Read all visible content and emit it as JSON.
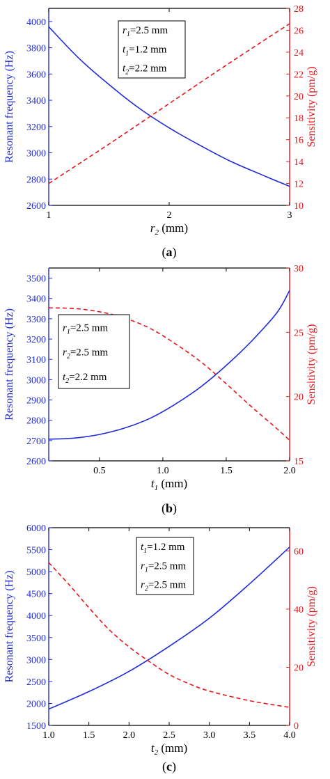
{
  "chart_data": [
    {
      "type": "line",
      "panel_label": "a",
      "xlabel_var": "r",
      "xlabel_sub": "2",
      "xlabel_unit": " (mm)",
      "ylabel_left": "Resonant frequency (Hz)",
      "ylabel_right": "Sensitivity (pm/g)",
      "xlim": [
        1,
        3
      ],
      "ylim_left": [
        2600,
        4100
      ],
      "ylim_right": [
        10,
        28
      ],
      "x_ticks": [
        1,
        2,
        3
      ],
      "x_tick_labels": [
        "1",
        "2",
        "3"
      ],
      "y_left_ticks": [
        2600,
        2800,
        3000,
        3200,
        3400,
        3600,
        3800,
        4000
      ],
      "y_left_tick_labels": [
        "2600",
        "2800",
        "3000",
        "3200",
        "3400",
        "3600",
        "3800",
        "4000"
      ],
      "y_right_ticks": [
        10,
        12,
        14,
        16,
        18,
        20,
        22,
        24,
        26,
        28
      ],
      "y_right_tick_labels": [
        "10",
        "12",
        "14",
        "16",
        "18",
        "20",
        "22",
        "24",
        "26",
        "28"
      ],
      "legend_position": "top-center",
      "legend": [
        {
          "var": "r",
          "sub": "1",
          "text": "=2.5 mm"
        },
        {
          "var": "t",
          "sub": "1",
          "text": "=1.2 mm"
        },
        {
          "var": "t",
          "sub": "2",
          "text": "=2.2 mm"
        }
      ],
      "series": [
        {
          "axis": "left",
          "style": "solid",
          "color": "#1f2bd6",
          "x": [
            1.0,
            1.25,
            1.5,
            1.75,
            2.0,
            2.25,
            2.5,
            2.75,
            3.0
          ],
          "values": [
            3960,
            3720,
            3520,
            3340,
            3190,
            3060,
            2940,
            2840,
            2745
          ]
        },
        {
          "axis": "right",
          "style": "dashed",
          "color": "#e8151b",
          "x": [
            1.0,
            1.5,
            2.0,
            2.5,
            3.0
          ],
          "values": [
            12.0,
            15.6,
            19.3,
            23.0,
            26.6
          ]
        }
      ]
    },
    {
      "type": "line",
      "panel_label": "b",
      "xlabel_var": "t",
      "xlabel_sub": "1",
      "xlabel_unit": " (mm)",
      "ylabel_left": "Resonant frequency (Hz)",
      "ylabel_right": "Sensitivity  (pm/g)",
      "xlim": [
        0.1,
        2.0
      ],
      "ylim_left": [
        2600,
        3550
      ],
      "ylim_right": [
        15,
        30
      ],
      "x_ticks": [
        0.5,
        1.0,
        1.5,
        2.0
      ],
      "x_tick_labels": [
        "0.5",
        "1.0",
        "1.5",
        "2.0"
      ],
      "y_left_ticks": [
        2600,
        2700,
        2800,
        2900,
        3000,
        3100,
        3200,
        3300,
        3400,
        3500
      ],
      "y_left_tick_labels": [
        "2600",
        "2700",
        "2800",
        "2900",
        "3000",
        "3100",
        "3200",
        "3300",
        "3400",
        "3500"
      ],
      "y_right_ticks": [
        15,
        20,
        25,
        30
      ],
      "y_right_tick_labels": [
        "15",
        "20",
        "25",
        "30"
      ],
      "legend_position": "center-left",
      "legend": [
        {
          "var": "r",
          "sub": "1",
          "text": "=2.5 mm"
        },
        {
          "var": "r",
          "sub": "2",
          "text": "=2.5 mm"
        },
        {
          "var": "t",
          "sub": "2",
          "text": "=2.2 mm"
        }
      ],
      "series": [
        {
          "axis": "left",
          "style": "solid",
          "color": "#1f2bd6",
          "x": [
            0.1,
            0.3,
            0.5,
            0.7,
            0.9,
            1.1,
            1.3,
            1.5,
            1.7,
            1.9,
            2.0
          ],
          "values": [
            2707,
            2712,
            2730,
            2762,
            2810,
            2880,
            2965,
            3070,
            3190,
            3330,
            3440
          ]
        },
        {
          "axis": "right",
          "style": "dashed",
          "color": "#e8151b",
          "x": [
            0.1,
            0.3,
            0.5,
            0.7,
            0.9,
            1.1,
            1.3,
            1.5,
            1.7,
            1.9,
            2.0
          ],
          "values": [
            26.9,
            26.85,
            26.6,
            26.1,
            25.3,
            24.1,
            22.7,
            21.0,
            19.2,
            17.5,
            16.6
          ]
        }
      ]
    },
    {
      "type": "line",
      "panel_label": "c",
      "xlabel_var": "t",
      "xlabel_sub": "2",
      "xlabel_unit": " (mm)",
      "ylabel_left": "Resonant frequency (Hz)",
      "ylabel_right": "Sensitivity  (pm/g)",
      "xlim": [
        1.0,
        4.0
      ],
      "ylim_left": [
        1500,
        6000
      ],
      "ylim_right": [
        0,
        68
      ],
      "x_ticks": [
        1.0,
        1.5,
        2.0,
        2.5,
        3.0,
        3.5,
        4.0
      ],
      "x_tick_labels": [
        "1.0",
        "1.5",
        "2.0",
        "2.5",
        "3.0",
        "3.5",
        "4.0"
      ],
      "y_left_ticks": [
        1500,
        2000,
        2500,
        3000,
        3500,
        4000,
        4500,
        5000,
        5500,
        6000
      ],
      "y_left_tick_labels": [
        "1500",
        "2000",
        "2500",
        "3000",
        "3500",
        "4000",
        "4500",
        "5000",
        "5500",
        "6000"
      ],
      "y_right_ticks": [
        0,
        20,
        40,
        60
      ],
      "y_right_tick_labels": [
        "0",
        "20",
        "40",
        "60"
      ],
      "legend_position": "top-center",
      "legend": [
        {
          "var": "t",
          "sub": "1",
          "text": "=1.2 mm"
        },
        {
          "var": "r",
          "sub": "1",
          "text": "=2.5 mm"
        },
        {
          "var": "r",
          "sub": "2",
          "text": "=2.5 mm"
        }
      ],
      "series": [
        {
          "axis": "left",
          "style": "solid",
          "color": "#1f2bd6",
          "x": [
            1.0,
            1.5,
            2.0,
            2.5,
            3.0,
            3.5,
            4.0
          ],
          "values": [
            1870,
            2270,
            2730,
            3300,
            3940,
            4720,
            5560
          ]
        },
        {
          "axis": "right",
          "style": "dashed",
          "color": "#e8151b",
          "x": [
            1.0,
            1.25,
            1.5,
            1.75,
            2.0,
            2.25,
            2.5,
            2.75,
            3.0,
            3.5,
            4.0
          ],
          "values": [
            56,
            48.5,
            40.5,
            33,
            27,
            22,
            17.5,
            14.3,
            11.8,
            8.5,
            6.2
          ]
        }
      ]
    }
  ]
}
